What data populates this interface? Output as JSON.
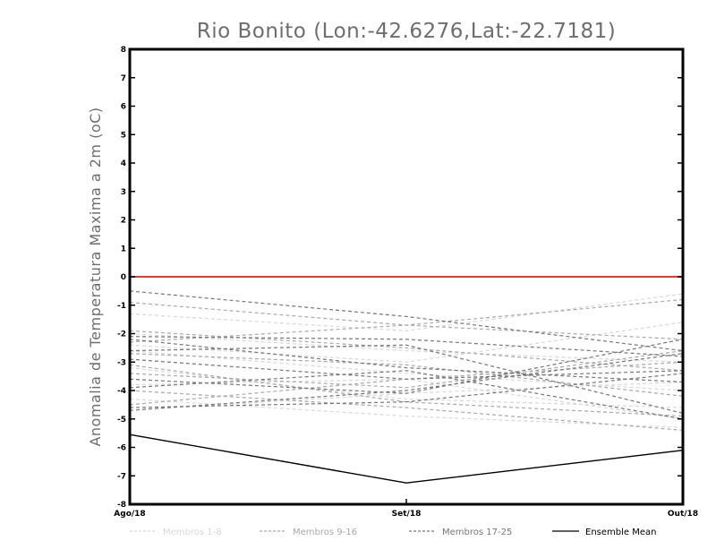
{
  "chart_data": {
    "type": "line",
    "title": "Rio Bonito (Lon:-42.6276,Lat:-22.7181)",
    "ylabel": "Anomalia de Temperatura Maxima a 2m (oC)",
    "xlabel": "",
    "categories": [
      "Ago/18",
      "Set/18",
      "Out/18"
    ],
    "ylim": [
      -8,
      8
    ],
    "yticks": [
      8,
      7,
      6,
      5,
      4,
      3,
      2,
      1,
      0,
      -1,
      -2,
      -3,
      -4,
      -5,
      -6,
      -7,
      -8
    ],
    "ytick_labels": [
      "8",
      "7",
      "6",
      "5",
      "4",
      "3",
      "2",
      "1",
      "0",
      "-1",
      "-2",
      "-3",
      "-4",
      "-5",
      "-6",
      "-7",
      "-8"
    ],
    "zero_line_color": "#e53935",
    "groups": [
      {
        "name": "Membros 1-8",
        "color": "#d8d8d8",
        "dash": "4,3",
        "series": [
          [
            -1.3,
            -1.9,
            -0.6
          ],
          [
            -2.0,
            -2.6,
            -3.0
          ],
          [
            -2.6,
            -3.4,
            -4.0
          ],
          [
            -3.2,
            -4.3,
            -4.6
          ],
          [
            -3.8,
            -3.6,
            -5.0
          ],
          [
            -4.3,
            -4.9,
            -5.3
          ],
          [
            -4.7,
            -4.1,
            -3.7
          ],
          [
            -2.4,
            -3.0,
            -1.6
          ]
        ]
      },
      {
        "name": "Membros 9-16",
        "color": "#a9a9a9",
        "dash": "4,3",
        "series": [
          [
            -0.9,
            -1.7,
            -2.2
          ],
          [
            -1.9,
            -2.5,
            -3.3
          ],
          [
            -2.7,
            -3.1,
            -4.2
          ],
          [
            -3.4,
            -3.9,
            -2.6
          ],
          [
            -4.0,
            -4.6,
            -5.4
          ],
          [
            -4.5,
            -3.6,
            -3.0
          ],
          [
            -2.3,
            -1.7,
            -0.8
          ],
          [
            -3.1,
            -4.4,
            -4.9
          ]
        ]
      },
      {
        "name": "Membros 17-25",
        "color": "#777777",
        "dash": "4,3",
        "series": [
          [
            -0.5,
            -1.4,
            -2.6
          ],
          [
            -2.1,
            -2.2,
            -2.8
          ],
          [
            -2.9,
            -3.6,
            -3.3
          ],
          [
            -3.6,
            -4.1,
            -2.2
          ],
          [
            -4.6,
            -4.4,
            -3.4
          ],
          [
            -2.6,
            -2.4,
            -4.8
          ],
          [
            -3.9,
            -3.3,
            -5.0
          ],
          [
            -2.2,
            -3.2,
            -3.7
          ],
          [
            -4.7,
            -4.0,
            -2.7
          ]
        ]
      }
    ],
    "ensemble_mean": {
      "name": "Ensemble Mean",
      "color": "#000000",
      "values": [
        -5.55,
        -7.25,
        -6.1
      ]
    },
    "legend": [
      {
        "label": "Membros 1-8",
        "color": "#d8d8d8",
        "dash": "3,2"
      },
      {
        "label": "Membros 9-16",
        "color": "#a9a9a9",
        "dash": "3,2"
      },
      {
        "label": "Membros 17-25",
        "color": "#777777",
        "dash": "3,2"
      },
      {
        "label": "Ensemble Mean",
        "color": "#000000",
        "dash": ""
      }
    ],
    "grid": false,
    "legend_position": "bottom"
  }
}
